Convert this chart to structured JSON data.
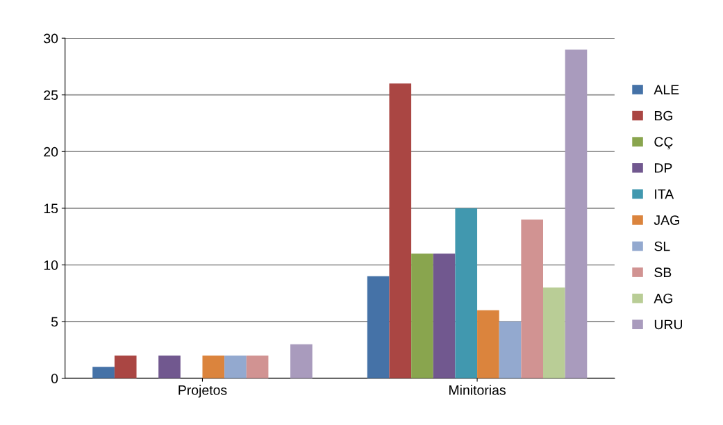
{
  "chart_data": {
    "type": "bar",
    "categories": [
      "Projetos",
      "Minitorias"
    ],
    "series": [
      {
        "name": "ALE",
        "color": "#4572a7",
        "values": [
          1,
          9
        ]
      },
      {
        "name": "BG",
        "color": "#aa4643",
        "values": [
          2,
          26
        ]
      },
      {
        "name": "CÇ",
        "color": "#89a54e",
        "values": [
          0,
          11
        ]
      },
      {
        "name": "DP",
        "color": "#71588f",
        "values": [
          2,
          11
        ]
      },
      {
        "name": "ITA",
        "color": "#4198af",
        "values": [
          0,
          15
        ]
      },
      {
        "name": "JAG",
        "color": "#db843d",
        "values": [
          2,
          6
        ]
      },
      {
        "name": "SL",
        "color": "#93a9cf",
        "values": [
          2,
          5
        ]
      },
      {
        "name": "SB",
        "color": "#d19392",
        "values": [
          2,
          14
        ]
      },
      {
        "name": "AG",
        "color": "#b9cd96",
        "values": [
          0,
          8
        ]
      },
      {
        "name": "URU",
        "color": "#a99bbd",
        "values": [
          3,
          29
        ]
      }
    ],
    "ylim": [
      0,
      30
    ],
    "yticks": [
      0,
      5,
      10,
      15,
      20,
      25,
      30
    ],
    "grid": "y",
    "legend": "right"
  }
}
